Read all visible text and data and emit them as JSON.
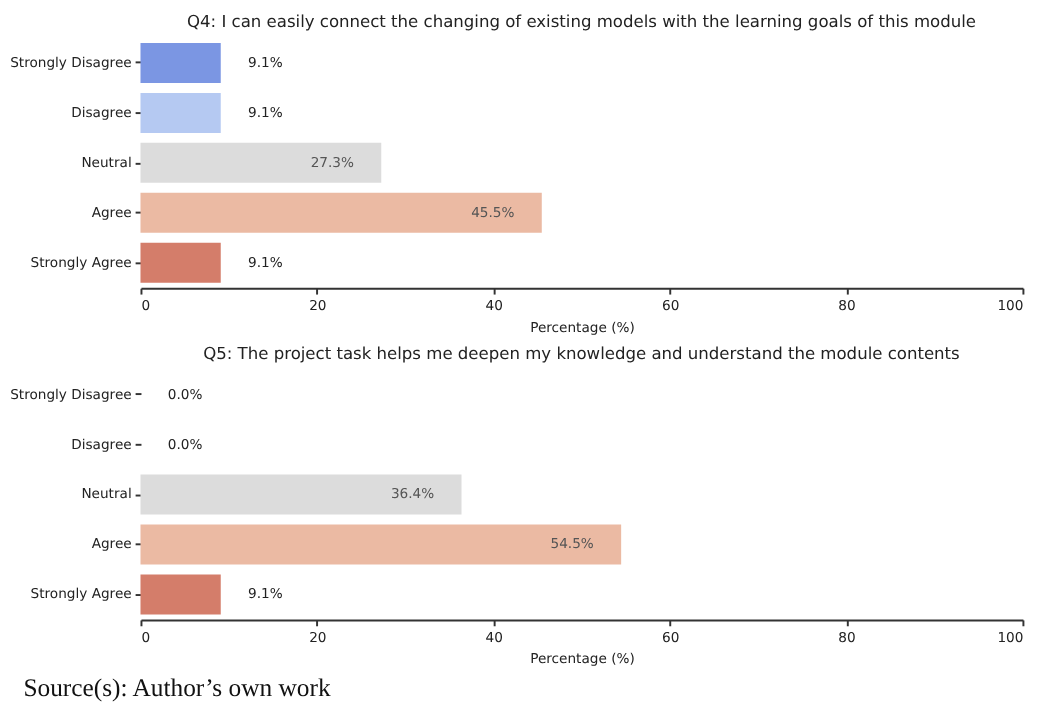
{
  "chart_data": [
    {
      "type": "bar",
      "orientation": "horizontal",
      "title": "Q4: I can easily connect the changing of existing models with the learning goals of this module",
      "xlabel": "Percentage (%)",
      "categories": [
        "Strongly Disagree",
        "Disagree",
        "Neutral",
        "Agree",
        "Strongly Agree"
      ],
      "values": [
        9.1,
        9.1,
        27.3,
        45.5,
        9.1
      ],
      "colors": [
        "#7b96e3",
        "#b5c9f2",
        "#dcdcdc",
        "#ebbaa3",
        "#d47d6a"
      ],
      "value_labels": [
        "9.1%",
        "9.1%",
        "27.3%",
        "45.5%",
        "9.1%"
      ],
      "xlim": [
        0,
        100
      ],
      "xticks": [
        0,
        20,
        40,
        60,
        80,
        100
      ],
      "grid": false,
      "legend": false
    },
    {
      "type": "bar",
      "orientation": "horizontal",
      "title": "Q5: The project task helps me deepen my knowledge and understand the module contents",
      "xlabel": "Percentage (%)",
      "categories": [
        "Strongly Disagree",
        "Disagree",
        "Neutral",
        "Agree",
        "Strongly Agree"
      ],
      "values": [
        0.0,
        0.0,
        36.4,
        54.5,
        9.1
      ],
      "colors": [
        "#7b96e3",
        "#b5c9f2",
        "#dcdcdc",
        "#ebbaa3",
        "#d47d6a"
      ],
      "value_labels": [
        "0.0%",
        "0.0%",
        "36.4%",
        "54.5%",
        "9.1%"
      ],
      "xlim": [
        0,
        100
      ],
      "xticks": [
        0,
        20,
        40,
        60,
        80,
        100
      ],
      "grid": false,
      "legend": false,
      "annotations": [
        "Source(s): Author’s own work"
      ]
    }
  ]
}
